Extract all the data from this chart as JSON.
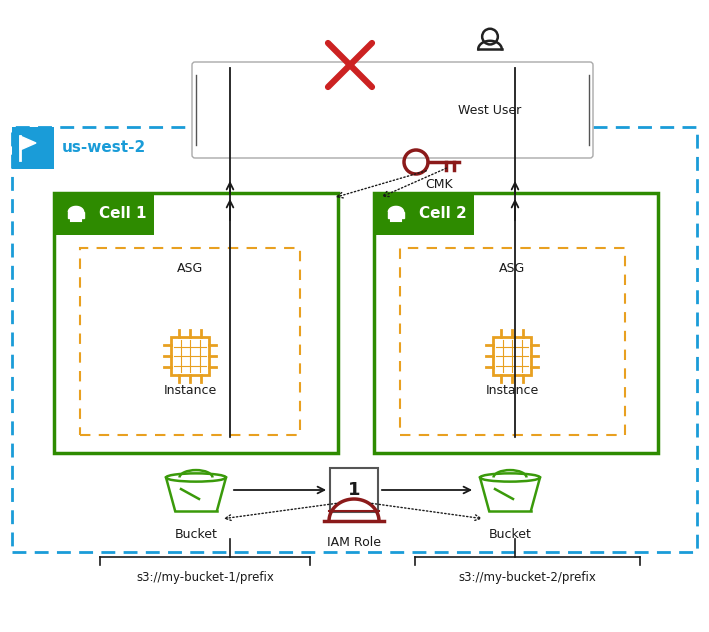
{
  "bg_color": "#ffffff",
  "green_color": "#2e8b00",
  "orange_color": "#e8a020",
  "blue_color": "#1a9cd8",
  "red_color": "#cc2222",
  "dark_color": "#1a1a1a",
  "gray_color": "#555555",
  "s3_bucket1_label": "s3://my-bucket-1/prefix",
  "s3_bucket2_label": "s3://my-bucket-2/prefix",
  "region_label": "us-west-2"
}
